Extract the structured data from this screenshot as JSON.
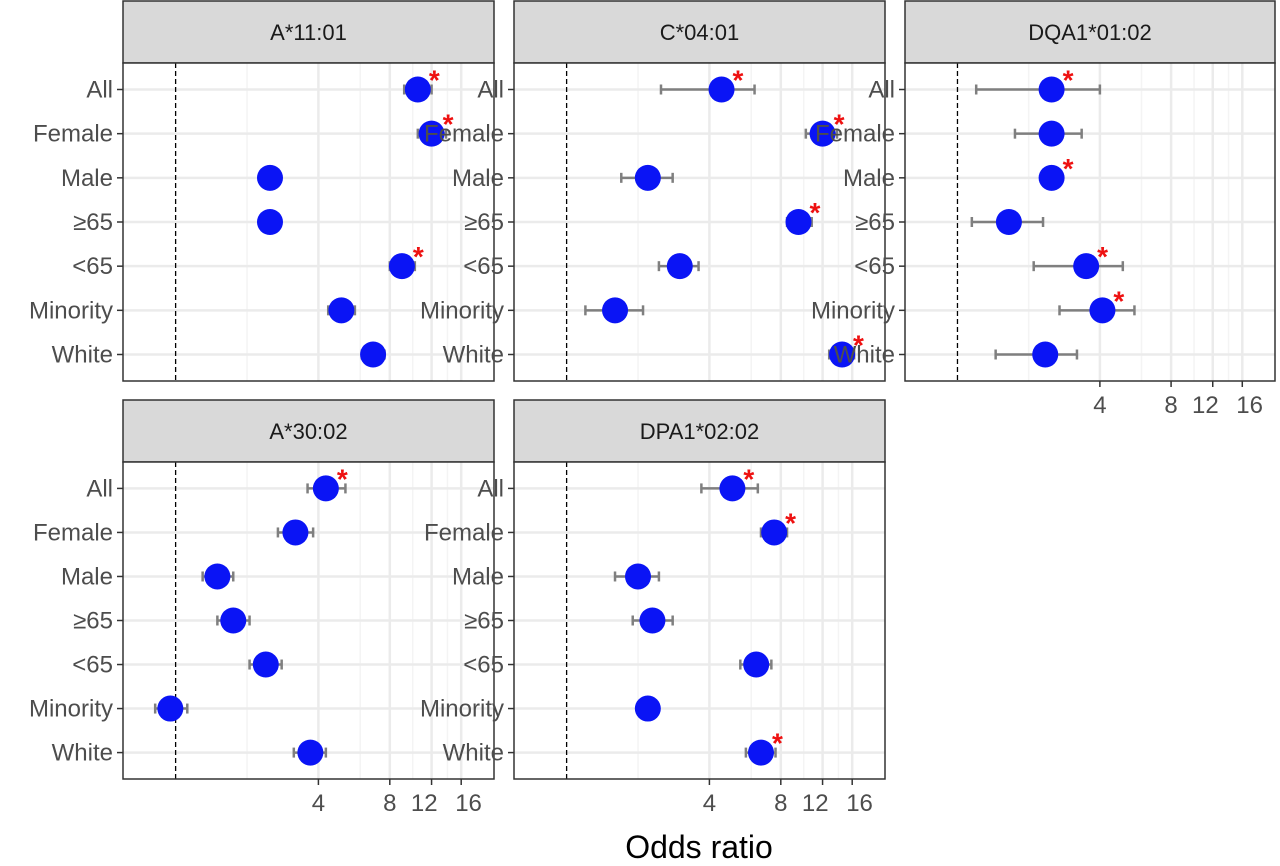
{
  "chart_data": [
    {
      "type": "scatter",
      "title": "A*11:01",
      "xlabel": "Odds ratio",
      "xscale": "log2",
      "xlim": [
        0.6,
        22
      ],
      "reference_line": 1,
      "categories": [
        "All",
        "Female",
        "Male",
        "≥65",
        "<65",
        "Minority",
        "White"
      ],
      "points": [
        {
          "category": "All",
          "or": 10.5,
          "lo": 9.2,
          "hi": 12.0,
          "significant": true
        },
        {
          "category": "Female",
          "or": 12.0,
          "lo": 10.5,
          "hi": 13.8,
          "significant": true
        },
        {
          "category": "Male",
          "or": 2.5,
          "lo": null,
          "hi": null,
          "significant": false
        },
        {
          "category": "≥65",
          "or": 2.5,
          "lo": null,
          "hi": null,
          "significant": false
        },
        {
          "category": "<65",
          "or": 9.0,
          "lo": 8.0,
          "hi": 10.2,
          "significant": true
        },
        {
          "category": "Minority",
          "or": 5.0,
          "lo": 4.4,
          "hi": 5.7,
          "significant": false
        },
        {
          "category": "White",
          "or": 6.8,
          "lo": 6.1,
          "hi": 7.6,
          "significant": false
        }
      ]
    },
    {
      "type": "scatter",
      "title": "C*04:01",
      "xlabel": "Odds ratio",
      "xscale": "log2",
      "xlim": [
        0.6,
        22
      ],
      "reference_line": 1,
      "categories": [
        "All",
        "Female",
        "Male",
        "≥65",
        "<65",
        "Minority",
        "White"
      ],
      "points": [
        {
          "category": "All",
          "or": 4.5,
          "lo": 2.5,
          "hi": 6.2,
          "significant": true
        },
        {
          "category": "Female",
          "or": 12.0,
          "lo": 10.2,
          "hi": 13.8,
          "significant": true
        },
        {
          "category": "Male",
          "or": 2.2,
          "lo": 1.7,
          "hi": 2.8,
          "significant": false
        },
        {
          "category": "≥65",
          "or": 9.5,
          "lo": 8.5,
          "hi": 10.8,
          "significant": true
        },
        {
          "category": "<65",
          "or": 3.0,
          "lo": 2.45,
          "hi": 3.6,
          "significant": false
        },
        {
          "category": "Minority",
          "or": 1.6,
          "lo": 1.2,
          "hi": 2.1,
          "significant": false
        },
        {
          "category": "White",
          "or": 14.5,
          "lo": 12.8,
          "hi": 16.3,
          "significant": true
        }
      ]
    },
    {
      "type": "scatter",
      "title": "DQA1*01:02",
      "xlabel": "Odds ratio",
      "xscale": "log2",
      "xlim": [
        0.6,
        22
      ],
      "reference_line": 1,
      "categories": [
        "All",
        "Female",
        "Male",
        "≥65",
        "<65",
        "Minority",
        "White"
      ],
      "tick_labels": [
        "4",
        "8",
        "12",
        "16"
      ],
      "points": [
        {
          "category": "All",
          "or": 2.5,
          "lo": 1.2,
          "hi": 4.0,
          "significant": true
        },
        {
          "category": "Female",
          "or": 2.5,
          "lo": 1.75,
          "hi": 3.35,
          "significant": false
        },
        {
          "category": "Male",
          "or": 2.5,
          "lo": null,
          "hi": null,
          "significant": true
        },
        {
          "category": "≥65",
          "or": 1.65,
          "lo": 1.15,
          "hi": 2.3,
          "significant": false
        },
        {
          "category": "<65",
          "or": 3.5,
          "lo": 2.1,
          "hi": 5.0,
          "significant": true
        },
        {
          "category": "Minority",
          "or": 4.1,
          "lo": 2.7,
          "hi": 5.6,
          "significant": true
        },
        {
          "category": "White",
          "or": 2.35,
          "lo": 1.45,
          "hi": 3.2,
          "significant": false
        }
      ]
    },
    {
      "type": "scatter",
      "title": "A*30:02",
      "xlabel": "Odds ratio",
      "xscale": "log2",
      "xlim": [
        0.6,
        22
      ],
      "reference_line": 1,
      "categories": [
        "All",
        "Female",
        "Male",
        "≥65",
        "<65",
        "Minority",
        "White"
      ],
      "tick_labels": [
        "4",
        "8",
        "12",
        "16"
      ],
      "points": [
        {
          "category": "All",
          "or": 4.3,
          "lo": 3.6,
          "hi": 5.2,
          "significant": true
        },
        {
          "category": "Female",
          "or": 3.2,
          "lo": 2.7,
          "hi": 3.8,
          "significant": false
        },
        {
          "category": "Male",
          "or": 1.5,
          "lo": 1.3,
          "hi": 1.75,
          "significant": false
        },
        {
          "category": "≥65",
          "or": 1.75,
          "lo": 1.5,
          "hi": 2.05,
          "significant": false
        },
        {
          "category": "<65",
          "or": 2.4,
          "lo": 2.05,
          "hi": 2.8,
          "significant": false
        },
        {
          "category": "Minority",
          "or": 0.95,
          "lo": 0.82,
          "hi": 1.12,
          "significant": false
        },
        {
          "category": "White",
          "or": 3.7,
          "lo": 3.15,
          "hi": 4.3,
          "significant": false
        }
      ]
    },
    {
      "type": "scatter",
      "title": "DPA1*02:02",
      "xlabel": "Odds ratio",
      "xscale": "log2",
      "xlim": [
        0.6,
        22
      ],
      "reference_line": 1,
      "categories": [
        "All",
        "Female",
        "Male",
        "≥65",
        "<65",
        "Minority",
        "White"
      ],
      "tick_labels": [
        "4",
        "8",
        "12",
        "16"
      ],
      "points": [
        {
          "category": "All",
          "or": 5.0,
          "lo": 3.7,
          "hi": 6.4,
          "significant": true
        },
        {
          "category": "Female",
          "or": 7.5,
          "lo": 6.6,
          "hi": 8.5,
          "significant": true
        },
        {
          "category": "Male",
          "or": 2.0,
          "lo": 1.6,
          "hi": 2.45,
          "significant": false
        },
        {
          "category": "≥65",
          "or": 2.3,
          "lo": 1.9,
          "hi": 2.8,
          "significant": false
        },
        {
          "category": "<65",
          "or": 6.3,
          "lo": 5.4,
          "hi": 7.3,
          "significant": false
        },
        {
          "category": "Minority",
          "or": 2.2,
          "lo": 2.0,
          "hi": null,
          "significant": false
        },
        {
          "category": "White",
          "or": 6.6,
          "lo": 5.7,
          "hi": 7.6,
          "significant": true
        }
      ]
    }
  ],
  "significance_marker": "*",
  "colors": {
    "point": "#0a14f5",
    "error_bar": "#7f7f7f",
    "significance": "#ee1111",
    "strip": "#d9d9d9",
    "grid": "#ebebeb",
    "panel_border": "#333333",
    "text": "#4d4d4d"
  },
  "xaxis_title": "Odds ratio"
}
